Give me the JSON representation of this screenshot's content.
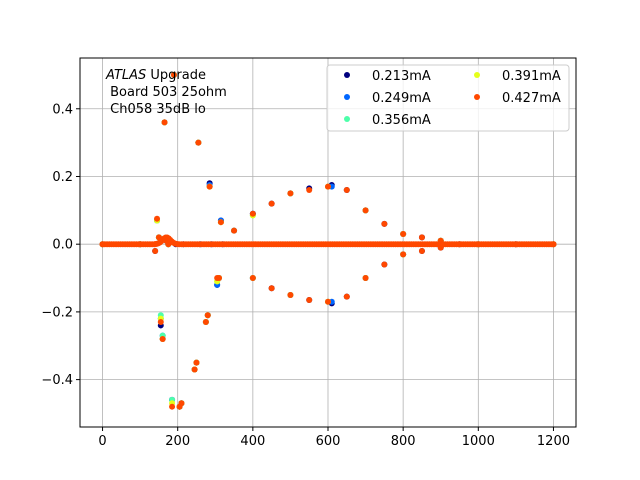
{
  "chart_data": {
    "type": "scatter",
    "title": "",
    "xlabel": "",
    "ylabel": "",
    "xlim": [
      -60,
      1260
    ],
    "ylim": [
      -0.54,
      0.55
    ],
    "xticks": [
      0,
      200,
      400,
      600,
      800,
      1000,
      1200
    ],
    "yticks": [
      -0.4,
      -0.2,
      0.0,
      0.2,
      0.4
    ],
    "xtick_labels": [
      "0",
      "200",
      "400",
      "600",
      "800",
      "1000",
      "1200"
    ],
    "ytick_labels": [
      "−0.4",
      "−0.2",
      "0.0",
      "0.2",
      "0.4"
    ],
    "grid": true,
    "legend_position": "upper-right",
    "legend_columns": 2,
    "annotation": {
      "line1_italic": "ATLAS",
      "line1_rest": " Upgrade",
      "line2": " Board 503 25ohm",
      "line3": " Ch058 35dB lo"
    },
    "series": [
      {
        "name": "0.213mA",
        "color": "#00007f"
      },
      {
        "name": "0.249mA",
        "color": "#0066ff"
      },
      {
        "name": "0.356mA",
        "color": "#4dffaa"
      },
      {
        "name": "0.391mA",
        "color": "#e5ff1a"
      },
      {
        "name": "0.427mA",
        "color": "#ff4800"
      }
    ],
    "points": {
      "series_0.213mA": [
        [
          0,
          0
        ],
        [
          100,
          0
        ],
        [
          140,
          -0.02
        ],
        [
          145,
          0.07
        ],
        [
          150,
          0.02
        ],
        [
          155,
          -0.24
        ],
        [
          160,
          -0.28
        ],
        [
          165,
          0.36
        ],
        [
          170,
          0.01
        ],
        [
          175,
          0
        ],
        [
          185,
          -0.46
        ],
        [
          190,
          0.5
        ],
        [
          195,
          0
        ],
        [
          205,
          -0.48
        ],
        [
          210,
          -0.47
        ],
        [
          215,
          0
        ],
        [
          245,
          -0.37
        ],
        [
          250,
          -0.35
        ],
        [
          255,
          0.3
        ],
        [
          260,
          0
        ],
        [
          275,
          -0.23
        ],
        [
          280,
          -0.21
        ],
        [
          285,
          0.18
        ],
        [
          290,
          0
        ],
        [
          305,
          -0.12
        ],
        [
          310,
          -0.1
        ],
        [
          315,
          0.07
        ],
        [
          320,
          0
        ],
        [
          350,
          0.04
        ],
        [
          400,
          0.09
        ],
        [
          400,
          -0.1
        ],
        [
          450,
          0.12
        ],
        [
          450,
          -0.13
        ],
        [
          500,
          0.15
        ],
        [
          500,
          -0.15
        ],
        [
          550,
          0.165
        ],
        [
          550,
          -0.165
        ],
        [
          610,
          0.175
        ],
        [
          610,
          -0.175
        ],
        [
          650,
          0.16
        ],
        [
          650,
          -0.155
        ],
        [
          700,
          0.1
        ],
        [
          700,
          -0.1
        ],
        [
          750,
          0.06
        ],
        [
          750,
          -0.06
        ],
        [
          800,
          0.03
        ],
        [
          800,
          -0.03
        ],
        [
          850,
          0.02
        ],
        [
          850,
          -0.02
        ],
        [
          900,
          0.01
        ],
        [
          900,
          -0.01
        ],
        [
          950,
          0
        ],
        [
          1000,
          0
        ],
        [
          1100,
          0
        ],
        [
          1200,
          0
        ]
      ],
      "series_0.249mA": [
        [
          0,
          0
        ],
        [
          100,
          0
        ],
        [
          145,
          0.07
        ],
        [
          150,
          0.02
        ],
        [
          155,
          -0.22
        ],
        [
          160,
          -0.27
        ],
        [
          165,
          0.36
        ],
        [
          175,
          0
        ],
        [
          185,
          -0.46
        ],
        [
          190,
          0.5
        ],
        [
          205,
          -0.48
        ],
        [
          210,
          -0.47
        ],
        [
          245,
          -0.37
        ],
        [
          250,
          -0.35
        ],
        [
          255,
          0.3
        ],
        [
          275,
          -0.23
        ],
        [
          280,
          -0.21
        ],
        [
          285,
          0.175
        ],
        [
          305,
          -0.12
        ],
        [
          310,
          -0.1
        ],
        [
          315,
          0.07
        ],
        [
          400,
          0.09
        ],
        [
          400,
          -0.1
        ],
        [
          500,
          0.15
        ],
        [
          500,
          -0.15
        ],
        [
          610,
          0.17
        ],
        [
          610,
          -0.17
        ],
        [
          700,
          0.1
        ],
        [
          700,
          -0.1
        ],
        [
          800,
          0.03
        ],
        [
          800,
          -0.03
        ],
        [
          900,
          0.01
        ],
        [
          1000,
          0
        ],
        [
          1200,
          0
        ]
      ],
      "series_0.356mA": [
        [
          0,
          0
        ],
        [
          100,
          0
        ],
        [
          145,
          0.07
        ],
        [
          150,
          0.02
        ],
        [
          155,
          -0.21
        ],
        [
          160,
          -0.27
        ],
        [
          165,
          0.36
        ],
        [
          175,
          0
        ],
        [
          185,
          -0.46
        ],
        [
          190,
          0.5
        ],
        [
          205,
          -0.48
        ],
        [
          210,
          -0.47
        ],
        [
          245,
          -0.37
        ],
        [
          250,
          -0.35
        ],
        [
          255,
          0.3
        ],
        [
          275,
          -0.23
        ],
        [
          280,
          -0.21
        ],
        [
          285,
          0.17
        ],
        [
          305,
          -0.11
        ],
        [
          310,
          -0.1
        ],
        [
          315,
          0.065
        ],
        [
          350,
          0.04
        ],
        [
          400,
          0.085
        ],
        [
          400,
          -0.1
        ],
        [
          500,
          0.15
        ],
        [
          500,
          -0.15
        ],
        [
          600,
          0.17
        ],
        [
          600,
          -0.17
        ],
        [
          700,
          0.1
        ],
        [
          700,
          -0.1
        ],
        [
          800,
          0.03
        ],
        [
          800,
          -0.03
        ],
        [
          900,
          0.01
        ],
        [
          1000,
          0
        ],
        [
          1200,
          0
        ]
      ],
      "series_0.391mA": [
        [
          0,
          0
        ],
        [
          100,
          0
        ],
        [
          145,
          0.07
        ],
        [
          150,
          0.02
        ],
        [
          155,
          -0.22
        ],
        [
          160,
          -0.28
        ],
        [
          165,
          0.36
        ],
        [
          175,
          0
        ],
        [
          185,
          -0.47
        ],
        [
          190,
          0.5
        ],
        [
          205,
          -0.48
        ],
        [
          210,
          -0.47
        ],
        [
          245,
          -0.37
        ],
        [
          250,
          -0.35
        ],
        [
          255,
          0.3
        ],
        [
          275,
          -0.23
        ],
        [
          280,
          -0.21
        ],
        [
          285,
          0.17
        ],
        [
          305,
          -0.11
        ],
        [
          310,
          -0.1
        ],
        [
          315,
          0.065
        ],
        [
          400,
          0.085
        ],
        [
          400,
          -0.1
        ],
        [
          500,
          0.15
        ],
        [
          500,
          -0.15
        ],
        [
          600,
          0.17
        ],
        [
          600,
          -0.17
        ],
        [
          700,
          0.1
        ],
        [
          700,
          -0.1
        ],
        [
          800,
          0.03
        ],
        [
          800,
          -0.03
        ],
        [
          900,
          0.01
        ],
        [
          1000,
          0
        ],
        [
          1200,
          0
        ]
      ],
      "series_0.427mA": [
        [
          0,
          0
        ],
        [
          100,
          0
        ],
        [
          140,
          -0.02
        ],
        [
          145,
          0.075
        ],
        [
          150,
          0.02
        ],
        [
          155,
          -0.23
        ],
        [
          160,
          -0.28
        ],
        [
          165,
          0.36
        ],
        [
          170,
          0.01
        ],
        [
          175,
          0
        ],
        [
          185,
          -0.48
        ],
        [
          190,
          0.5
        ],
        [
          205,
          -0.48
        ],
        [
          210,
          -0.47
        ],
        [
          245,
          -0.37
        ],
        [
          250,
          -0.35
        ],
        [
          255,
          0.3
        ],
        [
          275,
          -0.23
        ],
        [
          280,
          -0.21
        ],
        [
          285,
          0.17
        ],
        [
          305,
          -0.1
        ],
        [
          310,
          -0.1
        ],
        [
          315,
          0.065
        ],
        [
          350,
          0.04
        ],
        [
          400,
          0.09
        ],
        [
          400,
          -0.1
        ],
        [
          450,
          0.12
        ],
        [
          450,
          -0.13
        ],
        [
          500,
          0.15
        ],
        [
          500,
          -0.15
        ],
        [
          550,
          0.16
        ],
        [
          550,
          -0.165
        ],
        [
          600,
          0.17
        ],
        [
          600,
          -0.17
        ],
        [
          650,
          0.16
        ],
        [
          650,
          -0.155
        ],
        [
          700,
          0.1
        ],
        [
          700,
          -0.1
        ],
        [
          750,
          0.06
        ],
        [
          750,
          -0.06
        ],
        [
          800,
          0.03
        ],
        [
          800,
          -0.03
        ],
        [
          850,
          0.02
        ],
        [
          850,
          -0.02
        ],
        [
          900,
          0.01
        ],
        [
          900,
          -0.01
        ],
        [
          950,
          0
        ],
        [
          1000,
          0
        ],
        [
          1100,
          0
        ],
        [
          1200,
          0
        ]
      ]
    }
  }
}
